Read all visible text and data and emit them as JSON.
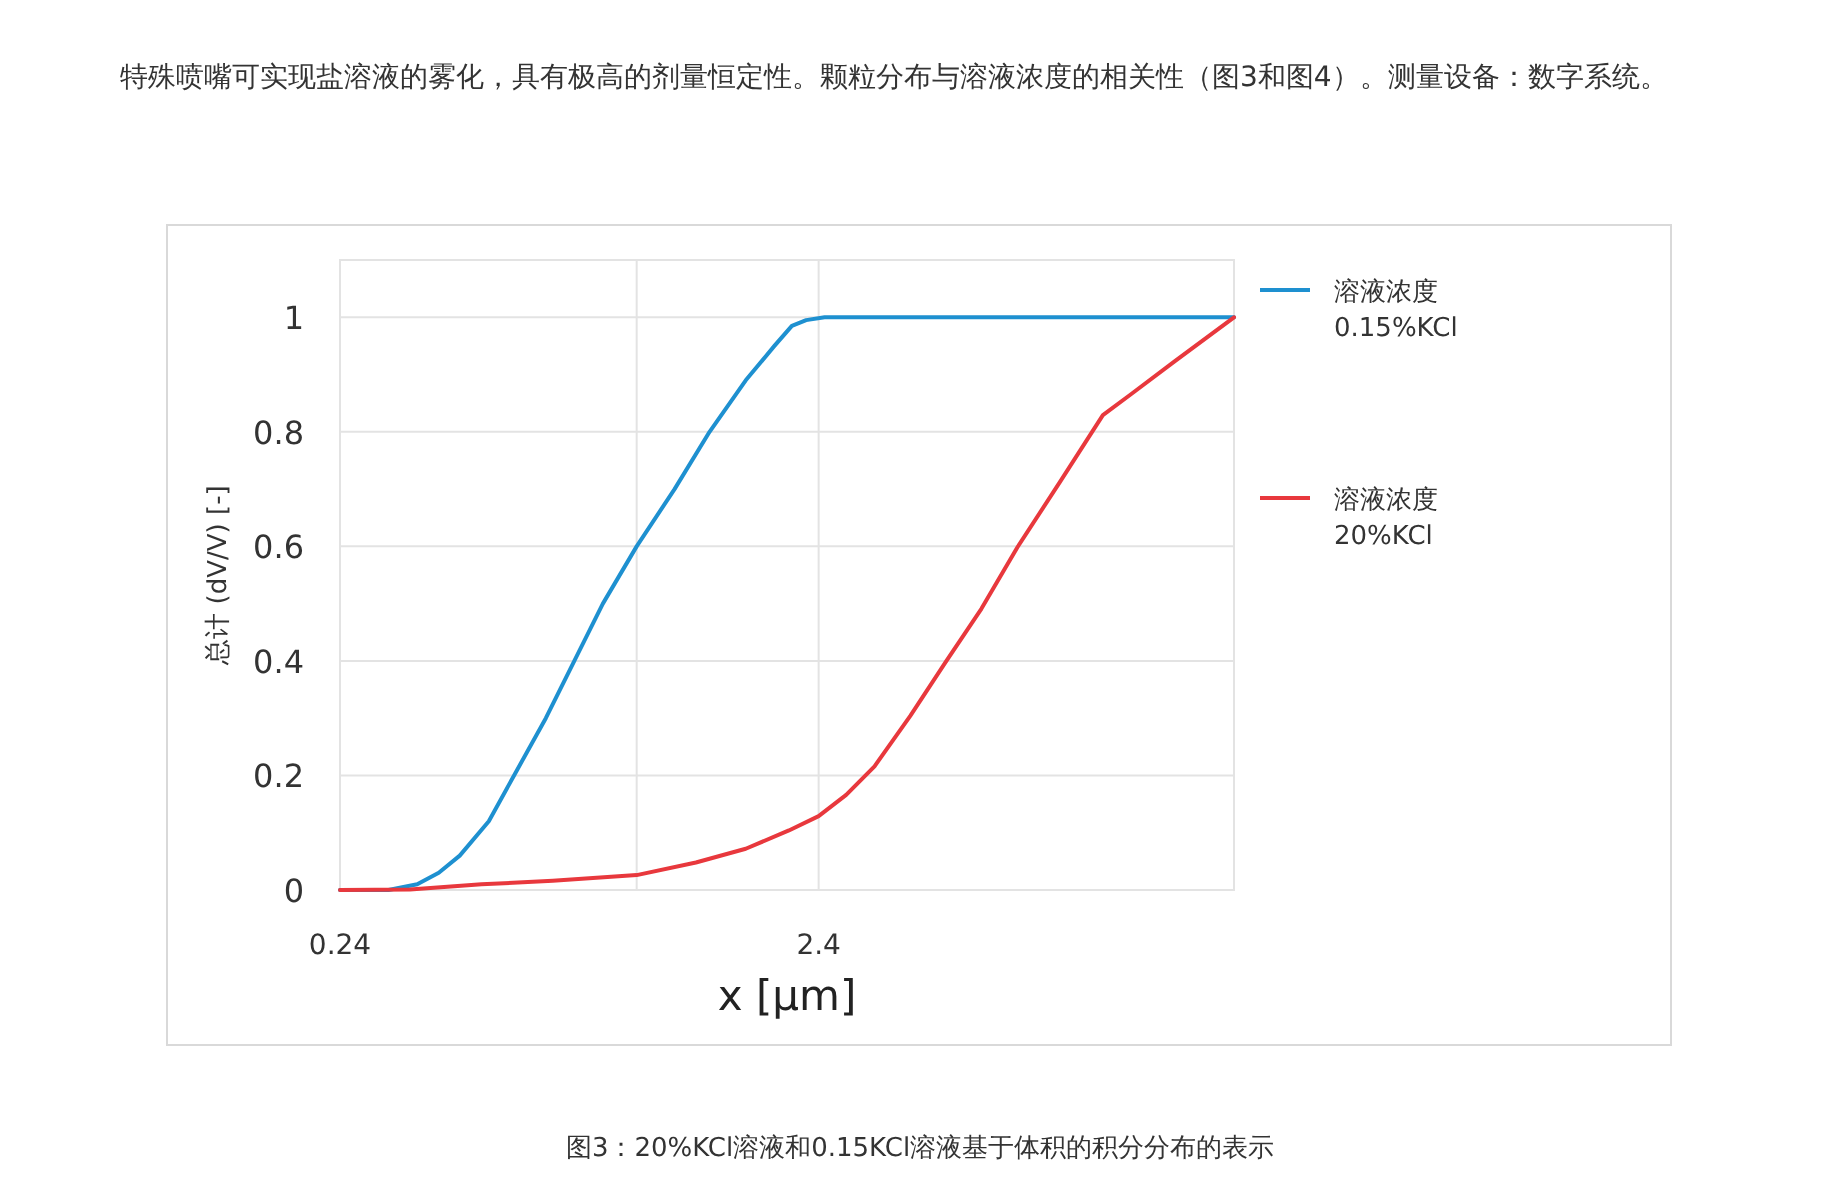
{
  "chart_data": {
    "type": "line",
    "title": null,
    "annotations": [
      "特殊喷嘴可实现盐溶液的雾化，具有极高的剂量恒定性。颗粒分布与溶液浓度的相关性（图3和图4）。测量设备：数字系统。",
      "图3：20%KCl溶液和0.15KCl溶液基于体积的积分分布的表示"
    ],
    "xlabel": "x [μm]",
    "ylabel": "总计 (dV/V) [-]",
    "log": "x",
    "xlim": [
      0.24,
      17.7
    ],
    "xticks": [
      0.24,
      {
        "value": 1.0,
        "label": null
      },
      2.4
    ],
    "ylim": [
      0,
      1.1
    ],
    "yticks": [
      0,
      0.2,
      0.4,
      0.6,
      0.8,
      1
    ],
    "grid": true,
    "legend": "right",
    "marker": "none",
    "line_style": "solid",
    "series": [
      {
        "name": "溶液浓度\n0.15%KCl",
        "color": "#1e90d0",
        "x": [
          0.24,
          0.303,
          0.348,
          0.386,
          0.427,
          0.491,
          0.563,
          0.646,
          0.741,
          0.85,
          1.0,
          1.2,
          1.42,
          1.69,
          1.94,
          2.11,
          2.26,
          2.47,
          3.14,
          6.24,
          12.4,
          17.7
        ],
        "values": [
          0,
          0,
          0.01,
          0.03,
          0.06,
          0.12,
          0.21,
          0.3,
          0.4,
          0.5,
          0.6,
          0.7,
          0.8,
          0.89,
          0.95,
          0.985,
          0.995,
          1,
          1,
          1,
          1,
          1
        ]
      },
      {
        "name": "溶液浓度\n20%KCl",
        "color": "#e8383d",
        "x": [
          0.24,
          0.336,
          0.474,
          0.668,
          1.0,
          1.33,
          1.69,
          2.08,
          2.4,
          2.74,
          3.14,
          3.73,
          4.42,
          5.25,
          6.24,
          7.67,
          9.42,
          10.8,
          13.3,
          17.7
        ],
        "values": [
          0,
          0.001,
          0.01,
          0.016,
          0.026,
          0.048,
          0.072,
          0.104,
          0.129,
          0.166,
          0.216,
          0.304,
          0.398,
          0.491,
          0.598,
          0.713,
          0.829,
          0.866,
          0.923,
          1
        ]
      }
    ]
  }
}
